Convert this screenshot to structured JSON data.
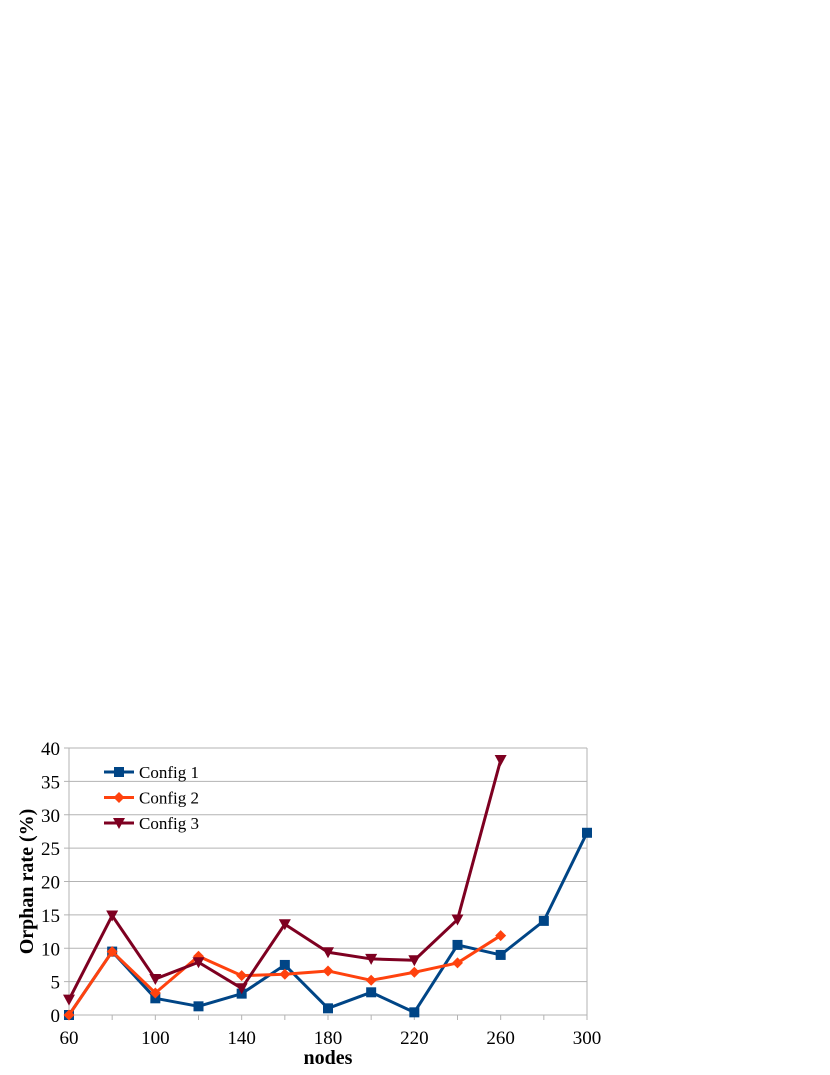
{
  "chart_data": {
    "type": "line",
    "title": "",
    "xlabel": "nodes",
    "ylabel": "Orphan rate (%)",
    "x": [
      60,
      80,
      100,
      120,
      140,
      160,
      180,
      200,
      220,
      240,
      260,
      280,
      300
    ],
    "xlim": [
      60,
      300
    ],
    "ylim": [
      0,
      40
    ],
    "x_ticks": [
      60,
      100,
      140,
      180,
      220,
      260,
      300
    ],
    "y_ticks": [
      0,
      5,
      10,
      15,
      20,
      25,
      30,
      35,
      40
    ],
    "grid": "horizontal",
    "legend_position": "top-left",
    "series": [
      {
        "name": "Config 1",
        "color": "#004586",
        "marker": "square",
        "values": [
          0,
          9.5,
          2.5,
          1.3,
          3.2,
          7.5,
          1.0,
          3.4,
          0.4,
          10.5,
          9.0,
          14.1,
          27.3
        ]
      },
      {
        "name": "Config 2",
        "color": "#ff420e",
        "marker": "diamond",
        "values": [
          0,
          9.5,
          3.3,
          8.8,
          5.9,
          6.1,
          6.6,
          5.2,
          6.4,
          7.8,
          11.9,
          null,
          null
        ]
      },
      {
        "name": "Config 3",
        "color": "#7e0021",
        "marker": "triangle-down",
        "values": [
          2.3,
          14.9,
          5.4,
          7.9,
          4.0,
          13.6,
          9.4,
          8.4,
          8.2,
          14.3,
          38.2,
          null,
          null
        ]
      }
    ]
  }
}
